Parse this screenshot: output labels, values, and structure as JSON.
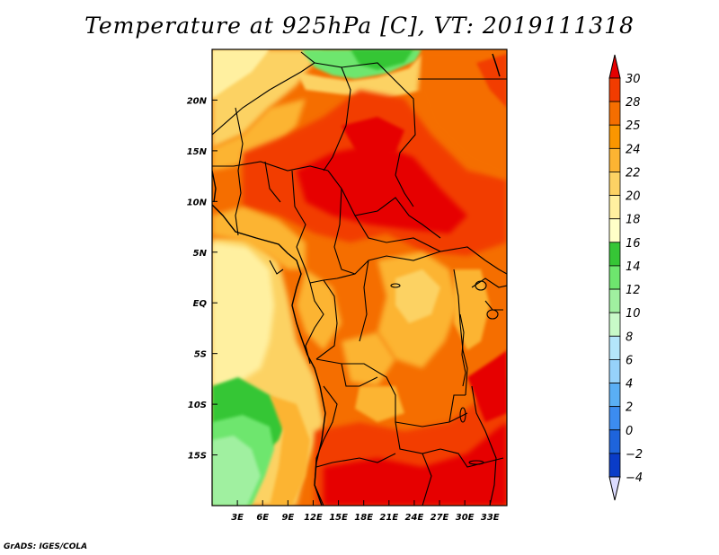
{
  "title": "Temperature at 925hPa [C], VT: 2019111318",
  "credit": "GrADS: IGES/COLA",
  "map": {
    "type": "heatmap",
    "variable": "Temperature at 925hPa",
    "units": "C",
    "valid_time": "2019111318",
    "lon_range": [
      0,
      35
    ],
    "lat_range": [
      -20,
      25
    ],
    "x_ticks": [
      {
        "value": 3,
        "label": "3E"
      },
      {
        "value": 6,
        "label": "6E"
      },
      {
        "value": 9,
        "label": "9E"
      },
      {
        "value": 12,
        "label": "12E"
      },
      {
        "value": 15,
        "label": "15E"
      },
      {
        "value": 18,
        "label": "18E"
      },
      {
        "value": 21,
        "label": "21E"
      },
      {
        "value": 24,
        "label": "24E"
      },
      {
        "value": 27,
        "label": "27E"
      },
      {
        "value": 30,
        "label": "30E"
      },
      {
        "value": 33,
        "label": "33E"
      }
    ],
    "y_ticks": [
      {
        "value": 20,
        "label": "20N"
      },
      {
        "value": 15,
        "label": "15N"
      },
      {
        "value": 10,
        "label": "10N"
      },
      {
        "value": 5,
        "label": "5N"
      },
      {
        "value": 0,
        "label": "EQ"
      },
      {
        "value": -5,
        "label": "5S"
      },
      {
        "value": -10,
        "label": "10S"
      },
      {
        "value": -15,
        "label": "15S"
      }
    ]
  },
  "colorbar": {
    "levels": [
      "30",
      "28",
      "25",
      "24",
      "22",
      "20",
      "18",
      "16",
      "14",
      "12",
      "10",
      "8",
      "6",
      "4",
      "2",
      "0",
      "−2",
      "−4"
    ],
    "colors": [
      "#e60000",
      "#f23c00",
      "#f56e00",
      "#fa9600",
      "#fcb432",
      "#fcd264",
      "#fff0a0",
      "#ffffc8",
      "#36c636",
      "#6ee66e",
      "#a0f0a0",
      "#c8fac8",
      "#b4e6fa",
      "#96d2fa",
      "#5aaff5",
      "#3c8cf0",
      "#1e64dc",
      "#0a3cc8",
      "#00008c"
    ]
  }
}
